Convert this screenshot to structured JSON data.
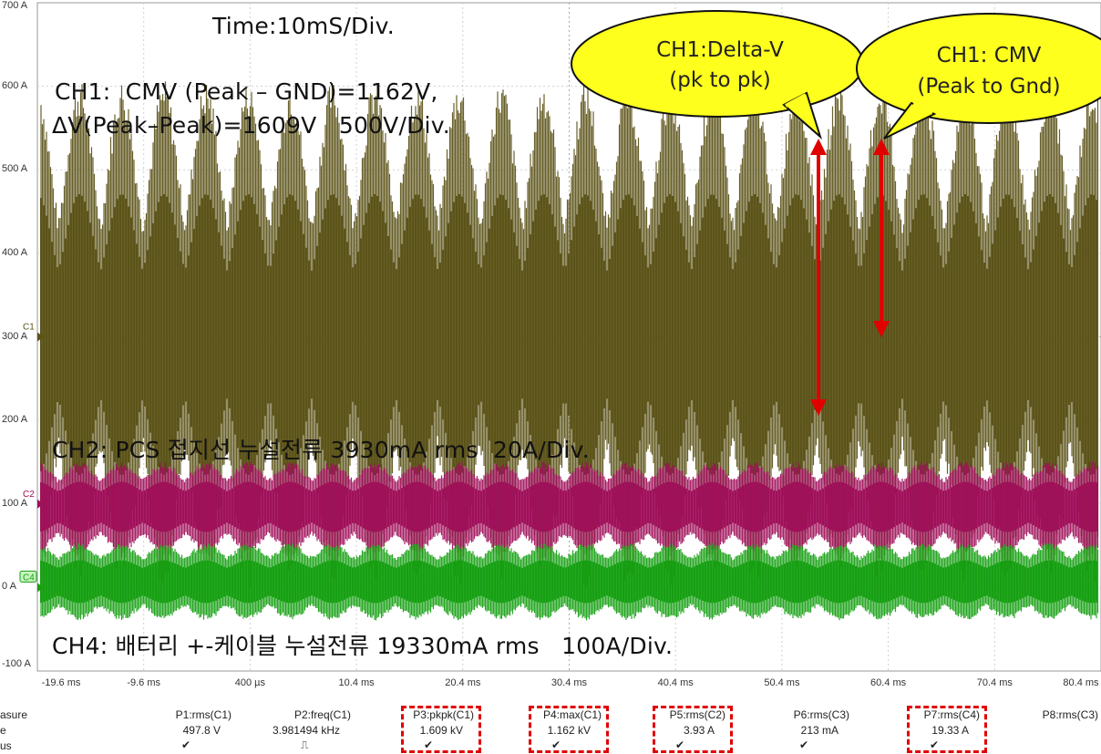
{
  "chart_data": {
    "type": "line",
    "title": "Time:10mS/Div.",
    "y_ticks": [
      "700 A",
      "600 A",
      "500 A",
      "400 A",
      "300 A",
      "200 A",
      "100 A",
      "0 A",
      "-100 A"
    ],
    "x_ticks": [
      "-19.6 ms",
      "-9.6 ms",
      "400 µs",
      "10.4 ms",
      "20.4 ms",
      "30.4 ms",
      "40.4 ms",
      "50.4 ms",
      "60.4 ms",
      "70.4 ms",
      "80.4 ms"
    ],
    "ylim": [
      -100,
      700
    ],
    "xlim": [
      -19.6,
      80.4
    ],
    "grid": true,
    "channel_markers": [
      "C1",
      "C2",
      "C4"
    ],
    "series": [
      {
        "name": "CH1",
        "color": "#5b5318",
        "center": 367,
        "amp_min": 150,
        "amp_max": 560,
        "beats": 25
      },
      {
        "name": "CH2",
        "color": "#a0105a",
        "center": 556,
        "amp_min": 50,
        "amp_max": 100,
        "beats": 25
      },
      {
        "name": "CH4",
        "color": "#16a012",
        "center": 638,
        "amp_min": 45,
        "amp_max": 85,
        "beats": 25
      }
    ],
    "annotations": {
      "ch1_line1": "CH1:  CMV (Peak – GND)=1162V,",
      "ch1_line2": "ΔV(Peak–Peak)=1609V   500V/Div.",
      "ch2": "CH2: PCS 접지선 누설전류 3930mA rms  20A/Div.",
      "ch4": "CH4: 배터리 +-케이블 누설전류 19330mA rms   100A/Div.",
      "bubble1_line1": "CH1:Delta-V",
      "bubble1_line2": "(pk to pk)",
      "bubble2_line1": "CH1: CMV",
      "bubble2_line2": "(Peak to Gnd)"
    }
  },
  "measure": {
    "row_labels": [
      "asure",
      "e",
      "us"
    ],
    "params": [
      {
        "label": "P1:rms(C1)",
        "value": "497.8 V",
        "status": "✔",
        "highlight": false
      },
      {
        "label": "P2:freq(C1)",
        "value": "3.981494 kHz",
        "status": "⎍",
        "highlight": false
      },
      {
        "label": "P3:pkpk(C1)",
        "value": "1.609 kV",
        "status": "✔",
        "highlight": true
      },
      {
        "label": "P4:max(C1)",
        "value": "1.162 kV",
        "status": "✔",
        "highlight": true
      },
      {
        "label": "P5:rms(C2)",
        "value": "3.93 A",
        "status": "✔",
        "highlight": true
      },
      {
        "label": "P6:rms(C3)",
        "value": "213 mA",
        "status": "✔",
        "highlight": false
      },
      {
        "label": "P7:rms(C4)",
        "value": "19.33 A",
        "status": "✔",
        "highlight": true
      },
      {
        "label": "P8:rms(C3)",
        "value": "",
        "status": "",
        "highlight": false
      }
    ]
  }
}
